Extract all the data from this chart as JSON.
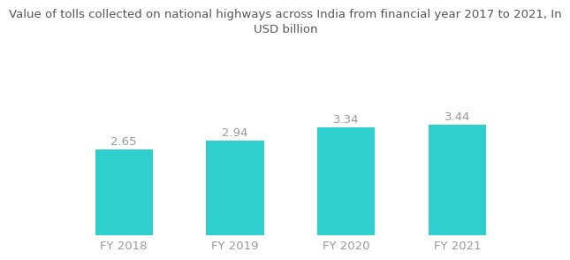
{
  "categories": [
    "FY 2018",
    "FY 2019",
    "FY 2020",
    "FY 2021"
  ],
  "values": [
    2.65,
    2.94,
    3.34,
    3.44
  ],
  "bar_color": "#2ECFCC",
  "title_line1": "Value of tolls collected on national highways across India from financial year 2017 to 2021, In",
  "title_line2": "USD billion",
  "title_fontsize": 9.5,
  "label_fontsize": 9.5,
  "tick_fontsize": 9.5,
  "ylim": [
    0,
    4.3
  ],
  "bar_width": 0.52,
  "background_color": "#ffffff",
  "label_color": "#999999",
  "tick_color": "#999999",
  "title_color": "#555555"
}
